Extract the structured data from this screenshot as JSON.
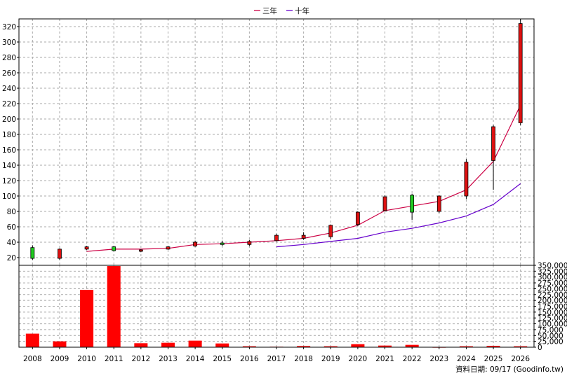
{
  "chart_data": [
    {
      "type": "candlestick",
      "legend": [
        {
          "name": "三年",
          "color": "#cc0044"
        },
        {
          "name": "十年",
          "color": "#6600cc"
        }
      ],
      "legend_position": "top-center",
      "ylim": [
        10,
        330
      ],
      "y_ticks": [
        20,
        40,
        60,
        80,
        100,
        120,
        140,
        160,
        180,
        200,
        220,
        240,
        260,
        280,
        300,
        320
      ],
      "grid": true,
      "categories": [
        "2008",
        "2009",
        "2010",
        "2011",
        "2012",
        "2013",
        "2014",
        "2015",
        "2016",
        "2017",
        "2018",
        "2019",
        "2020",
        "2021",
        "2022",
        "2023",
        "2024",
        "2025",
        "2026"
      ],
      "candles": [
        {
          "open": 19,
          "close": 33,
          "high": 36,
          "low": 17
        },
        {
          "open": 31,
          "close": 19,
          "high": 32,
          "low": 17
        },
        {
          "open": 34,
          "close": 31,
          "high": 35,
          "low": 30
        },
        {
          "open": 29,
          "close": 34,
          "high": 35,
          "low": 28
        },
        {
          "open": 30,
          "close": 29,
          "high": 31,
          "low": 27
        },
        {
          "open": 34,
          "close": 31,
          "high": 35,
          "low": 30
        },
        {
          "open": 40,
          "close": 35,
          "high": 42,
          "low": 34
        },
        {
          "open": 37,
          "close": 39,
          "high": 42,
          "low": 35
        },
        {
          "open": 41,
          "close": 37,
          "high": 43,
          "low": 35
        },
        {
          "open": 49,
          "close": 42,
          "high": 51,
          "low": 41
        },
        {
          "open": 49,
          "close": 45,
          "high": 53,
          "low": 43
        },
        {
          "open": 62,
          "close": 47,
          "high": 63,
          "low": 44
        },
        {
          "open": 79,
          "close": 63,
          "high": 80,
          "low": 61
        },
        {
          "open": 99,
          "close": 81,
          "high": 101,
          "low": 80
        },
        {
          "open": 79,
          "close": 101,
          "high": 103,
          "low": 69
        },
        {
          "open": 100,
          "close": 80,
          "high": 101,
          "low": 78
        },
        {
          "open": 144,
          "close": 100,
          "high": 148,
          "low": 96
        },
        {
          "open": 190,
          "close": 146,
          "high": 192,
          "low": 108
        },
        {
          "open": 324,
          "close": 195,
          "high": 330,
          "low": 192
        }
      ],
      "series": [
        {
          "name": "三年",
          "color": "#cc0044",
          "values": [
            null,
            null,
            28,
            31,
            31,
            32,
            37,
            38,
            40,
            42,
            45,
            52,
            62,
            81,
            87,
            93,
            108,
            145,
            218
          ]
        },
        {
          "name": "十年",
          "color": "#6600cc",
          "values": [
            null,
            null,
            null,
            null,
            null,
            null,
            null,
            null,
            null,
            34,
            37,
            41,
            45,
            53,
            58,
            65,
            74,
            89,
            116
          ]
        }
      ],
      "up_color": "#22cc22",
      "down_color": "#dd1111"
    },
    {
      "type": "bar",
      "categories": [
        "2008",
        "2009",
        "2010",
        "2011",
        "2012",
        "2013",
        "2014",
        "2015",
        "2016",
        "2017",
        "2018",
        "2019",
        "2020",
        "2021",
        "2022",
        "2023",
        "2024",
        "2025",
        "2026"
      ],
      "values": [
        58000,
        25000,
        245000,
        347000,
        17000,
        19000,
        28000,
        16000,
        4000,
        2000,
        5000,
        4000,
        13000,
        7000,
        10000,
        1000,
        4000,
        6000,
        4000
      ],
      "ylim": [
        0,
        350000
      ],
      "y_ticks": [
        "0",
        "25,000",
        "50,000",
        "75,000",
        "100,000",
        "125,000",
        "150,000",
        "175,000",
        "200,000",
        "225,000",
        "250,000",
        "275,000",
        "300,000",
        "325,000",
        "350,000"
      ],
      "y_tick_values": [
        0,
        25000,
        50000,
        75000,
        100000,
        125000,
        150000,
        175000,
        200000,
        225000,
        250000,
        275000,
        300000,
        325000,
        350000
      ],
      "color": "#ff0000",
      "grid": true
    }
  ],
  "footer": {
    "source_label": "資料日期: 09/17  (Goodinfo.tw)"
  }
}
